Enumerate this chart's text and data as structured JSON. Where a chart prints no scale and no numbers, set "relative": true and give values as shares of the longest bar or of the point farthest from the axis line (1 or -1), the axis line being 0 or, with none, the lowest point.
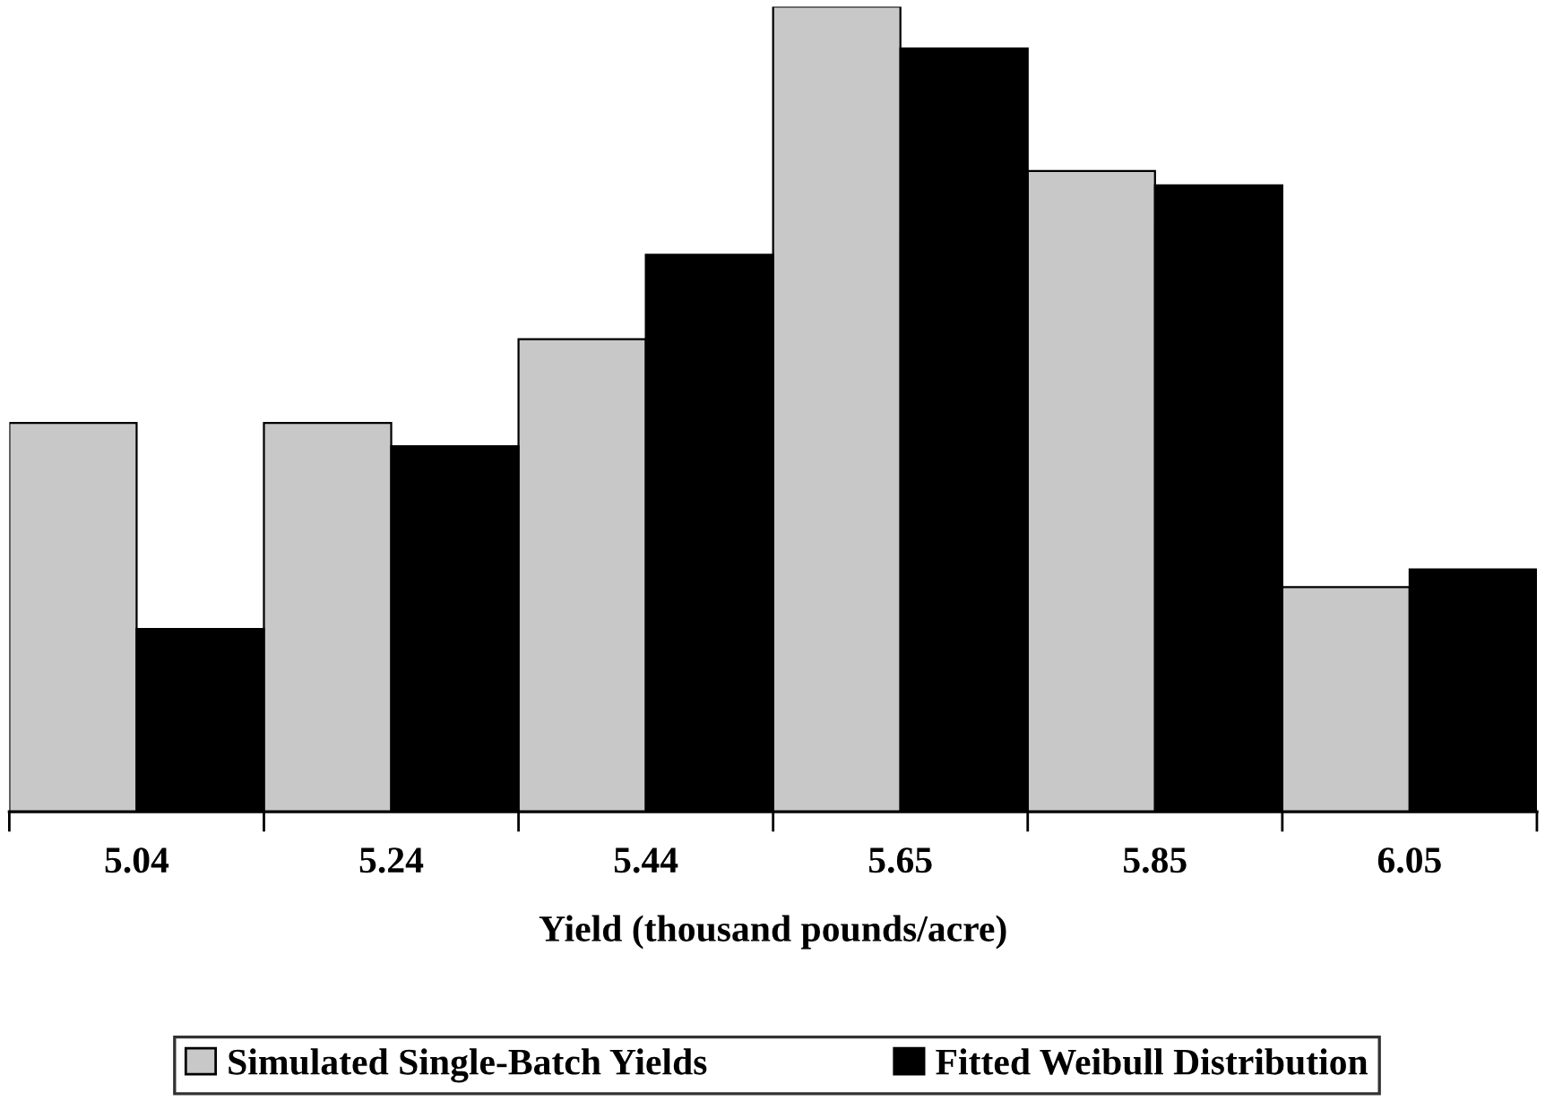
{
  "chart_data": {
    "type": "bar",
    "xlabel": "Yield (thousand pounds/acre)",
    "relative": true,
    "categories": [
      "5.04",
      "5.24",
      "5.44",
      "5.65",
      "5.85",
      "6.05"
    ],
    "series": [
      {
        "name": "Simulated Single-Batch Yields",
        "color": "#c8c8c8",
        "values": [
          0.483,
          0.483,
          0.587,
          1,
          0.796,
          0.279
        ]
      },
      {
        "name": "Fitted Weibull Distribution",
        "color": "#000000",
        "values": [
          0.227,
          0.454,
          0.692,
          0.948,
          0.778,
          0.301
        ]
      }
    ],
    "legend": "bottom",
    "grid": false
  }
}
